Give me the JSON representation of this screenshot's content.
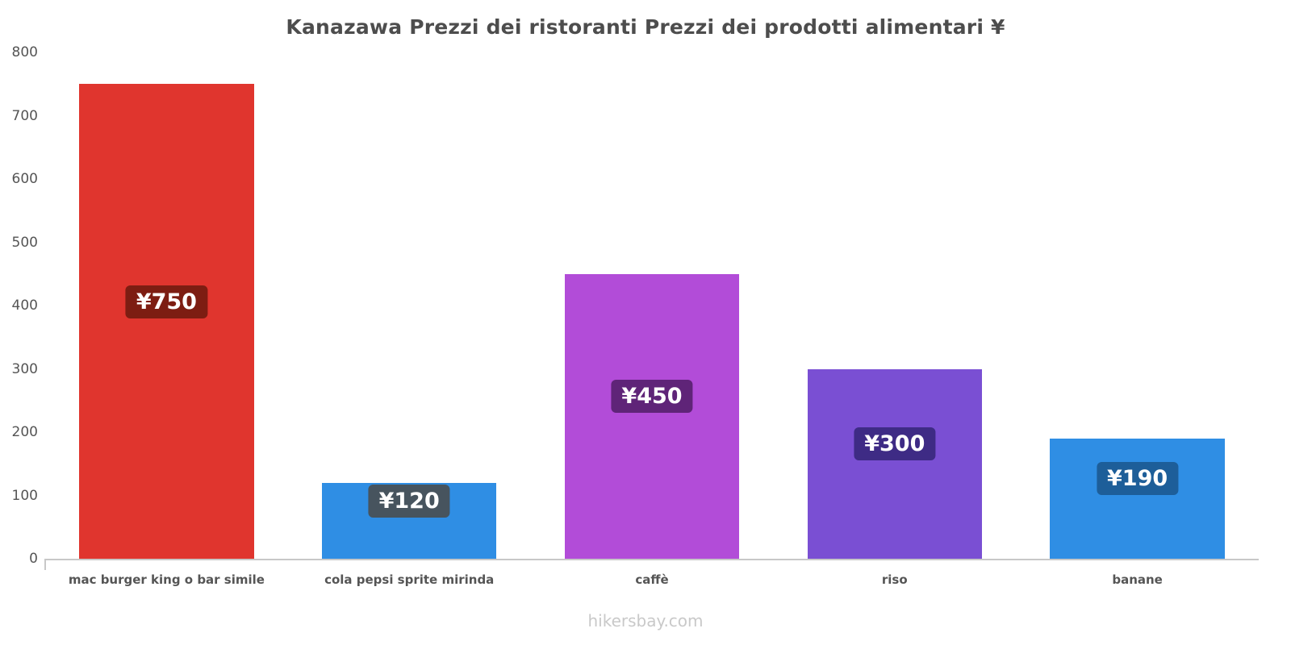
{
  "footer": "hikersbay.com",
  "chart_data": {
    "type": "bar",
    "title": "Kanazawa Prezzi dei ristoranti Prezzi dei prodotti alimentari ¥",
    "currency": "¥",
    "categories": [
      "mac burger king o bar simile",
      "cola pepsi sprite mirinda",
      "caffè",
      "riso",
      "banane"
    ],
    "values": [
      750,
      120,
      450,
      300,
      190
    ],
    "value_labels": [
      "¥750",
      "¥120",
      "¥450",
      "¥300",
      "¥190"
    ],
    "bar_colors": [
      "#e0352e",
      "#2f8ee4",
      "#b24cd8",
      "#7a4fd3",
      "#2f8ee4"
    ],
    "label_box_colors": [
      "#7d1d12",
      "#47545e",
      "#5f2478",
      "#3e2b85",
      "#1d5e99"
    ],
    "xlabel": "",
    "ylabel": "",
    "ylim": [
      0,
      800
    ],
    "yticks": [
      0,
      100,
      200,
      300,
      400,
      500,
      600,
      700,
      800
    ],
    "grid": false,
    "legend": false,
    "background": "#ffffff"
  }
}
